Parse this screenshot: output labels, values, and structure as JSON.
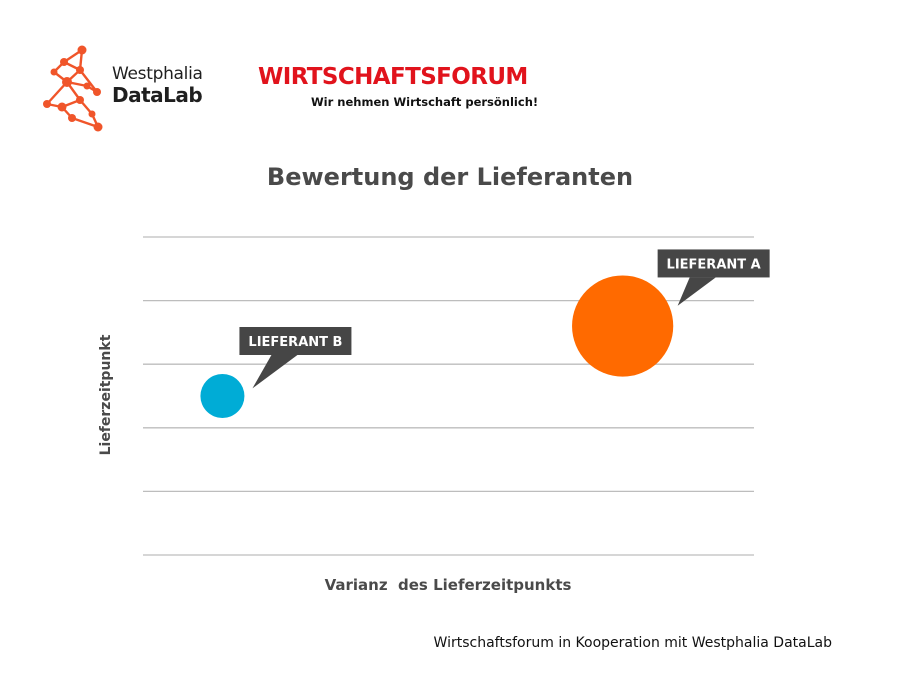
{
  "logos": {
    "westphalia": {
      "line1": "Westphalia",
      "line2": "DataLab",
      "icon": "network-graph-icon",
      "color": "#f0552a"
    },
    "wirtschaftsforum": {
      "title": "WIRTSCHAFTSFORUM",
      "tagline": "Wir nehmen Wirtschaft persönlich!",
      "color": "#e1131c"
    }
  },
  "footer": {
    "text": "Wirtschaftsforum in Kooperation mit Westphalia DataLab"
  },
  "chart_data": {
    "type": "scatter",
    "title": "Bewertung der Lieferanten",
    "xlabel": "Varianz  des Lieferzeitpunkts",
    "ylabel": "Lieferzeitpunkt",
    "grid": true,
    "gridline_count": 6,
    "xlim": [
      0,
      10
    ],
    "ylim": [
      0,
      5
    ],
    "points": [
      {
        "label": "LIEFERANT B",
        "x": 1.3,
        "y": 2.5,
        "size": 1.0,
        "color": "#00acd6"
      },
      {
        "label": "LIEFERANT A",
        "x": 7.85,
        "y": 3.6,
        "size": 2.3,
        "color": "#ff6a00"
      }
    ],
    "label_box_color": "#464646"
  }
}
